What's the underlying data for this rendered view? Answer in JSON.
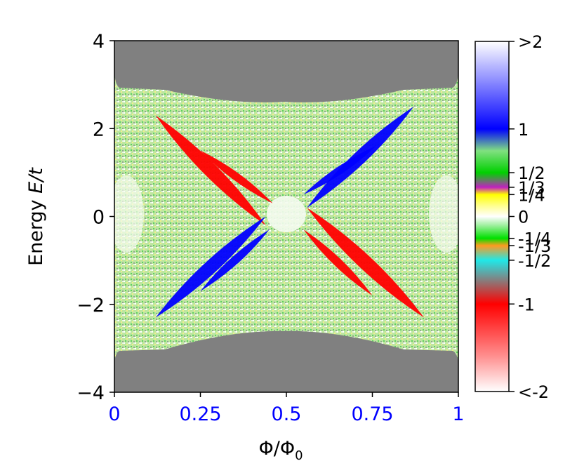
{
  "chart_data": {
    "type": "heatmap",
    "title": "",
    "xlabel": "Φ/Φ",
    "xlabel_sub": "0",
    "ylabel_prefix": "Energy ",
    "ylabel_var": "E/t",
    "xlim": [
      0,
      1
    ],
    "ylim": [
      -4,
      4
    ],
    "x_ticks": [
      {
        "value": 0,
        "label": "0"
      },
      {
        "value": 0.25,
        "label": "0.25"
      },
      {
        "value": 0.5,
        "label": "0.5"
      },
      {
        "value": 0.75,
        "label": "0.75"
      },
      {
        "value": 1,
        "label": "1"
      }
    ],
    "y_ticks": [
      {
        "value": 4,
        "label": "4"
      },
      {
        "value": 2,
        "label": "2"
      },
      {
        "value": 0,
        "label": "0"
      },
      {
        "value": -2,
        "label": "−2"
      },
      {
        "value": -4,
        "label": "−4"
      }
    ],
    "x_tick_color": "#0000ff",
    "gap_color": "#808080",
    "colorbar": {
      "range": [
        -2,
        2
      ],
      "ticks": [
        {
          "value": 2,
          "label": ">2"
        },
        {
          "value": 1,
          "label": "1"
        },
        {
          "value": 0.5,
          "label": "1/2"
        },
        {
          "value": 0.3333,
          "label": "1/3"
        },
        {
          "value": 0.25,
          "label": "1/4"
        },
        {
          "value": 0,
          "label": "0"
        },
        {
          "value": -0.25,
          "label": "-1/4"
        },
        {
          "value": -0.3333,
          "label": "-1/3"
        },
        {
          "value": -0.5,
          "label": "-1/2"
        },
        {
          "value": -1,
          "label": "-1"
        },
        {
          "value": -2,
          "label": "<-2"
        }
      ],
      "colors": [
        {
          "value": -2,
          "color": "#ffffff"
        },
        {
          "value": -1.6,
          "color": "#ff9090"
        },
        {
          "value": -1,
          "color": "#ff0000"
        },
        {
          "value": -0.5,
          "color": "#20e8e8"
        },
        {
          "value": -0.3333,
          "color": "#ff9a20"
        },
        {
          "value": -0.25,
          "color": "#00e000"
        },
        {
          "value": -0.1,
          "color": "#a0f0a0"
        },
        {
          "value": 0,
          "color": "#ffffff"
        },
        {
          "value": 0.12,
          "color": "#ffff90"
        },
        {
          "value": 0.25,
          "color": "#ffff00"
        },
        {
          "value": 0.3333,
          "color": "#c020c0"
        },
        {
          "value": 0.4,
          "color": "#707070"
        },
        {
          "value": 0.5,
          "color": "#00d000"
        },
        {
          "value": 0.75,
          "color": "#80e080"
        },
        {
          "value": 1,
          "color": "#0000ff"
        },
        {
          "value": 2,
          "color": "#ffffff"
        }
      ]
    },
    "regions": [
      {
        "name": "chern-minus-1",
        "value": -1,
        "color": "#ff0000",
        "bands": [
          {
            "x0": 0.12,
            "y0": 2.3,
            "x1": 0.44,
            "y1": -0.2
          },
          {
            "x0": 0.25,
            "y0": 1.5,
            "x1": 0.46,
            "y1": 0.3
          },
          {
            "x0": 0.56,
            "y0": 0.2,
            "x1": 0.9,
            "y1": -2.3
          },
          {
            "x0": 0.55,
            "y0": -0.3,
            "x1": 0.75,
            "y1": -1.8
          }
        ]
      },
      {
        "name": "chern-plus-1",
        "value": 1,
        "color": "#0000ff",
        "bands": [
          {
            "x0": 0.56,
            "y0": 0.2,
            "x1": 0.87,
            "y1": 2.5
          },
          {
            "x0": 0.55,
            "y0": 0.5,
            "x1": 0.76,
            "y1": 1.6
          },
          {
            "x0": 0.12,
            "y0": -2.3,
            "x1": 0.44,
            "y1": 0.0
          },
          {
            "x0": 0.25,
            "y0": -1.7,
            "x1": 0.45,
            "y1": -0.3
          }
        ]
      }
    ]
  }
}
